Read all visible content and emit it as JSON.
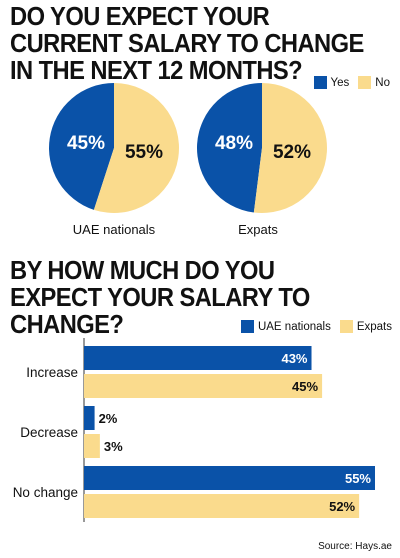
{
  "colors": {
    "blue": "#0a52a8",
    "yellow": "#fadb8d",
    "baseline": "#333333"
  },
  "headline1": "DO YOU EXPECT YOUR CURRENT SALARY TO CHANGE IN THE NEXT 12 MONTHS?",
  "headline2": "BY HOW MUCH DO YOU EXPECT YOUR SALARY TO CHANGE?",
  "pie_legend": {
    "yes": "Yes",
    "no": "No"
  },
  "bar_legend": {
    "uae": "UAE nationals",
    "expats": "Expats"
  },
  "source": "Source: Hays.ae",
  "chart_data": [
    {
      "type": "pie",
      "title": "UAE nationals",
      "slices": [
        {
          "name": "Yes",
          "value": 45,
          "label": "45%"
        },
        {
          "name": "No",
          "value": 55,
          "label": "55%"
        }
      ]
    },
    {
      "type": "pie",
      "title": "Expats",
      "slices": [
        {
          "name": "Yes",
          "value": 48,
          "label": "48%"
        },
        {
          "name": "No",
          "value": 52,
          "label": "52%"
        }
      ]
    },
    {
      "type": "bar",
      "orientation": "horizontal",
      "categories": [
        "Increase",
        "Decrease",
        "No change"
      ],
      "series": [
        {
          "name": "UAE nationals",
          "values": [
            43,
            2,
            55
          ],
          "labels": [
            "43%",
            "2%",
            "55%"
          ]
        },
        {
          "name": "Expats",
          "values": [
            45,
            3,
            52
          ],
          "labels": [
            "45%",
            "3%",
            "52%"
          ]
        }
      ],
      "xlim": [
        0,
        55
      ]
    }
  ]
}
